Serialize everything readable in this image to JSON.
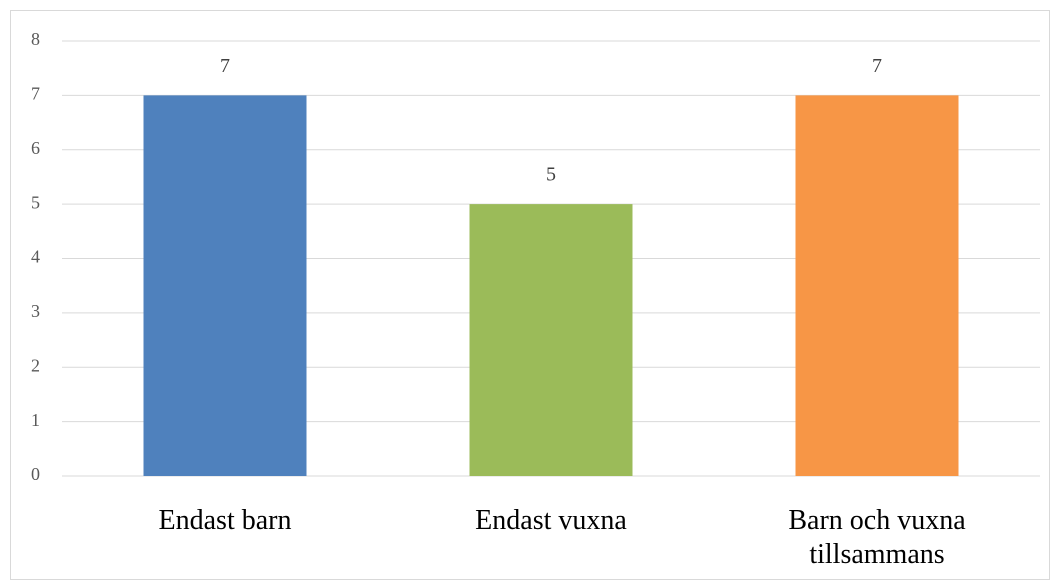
{
  "chart_data": {
    "type": "bar",
    "categories": [
      "Endast barn",
      "Endast vuxna",
      "Barn och vuxna tillsammans"
    ],
    "values": [
      7,
      5,
      7
    ],
    "colors": [
      "#4f81bd",
      "#9bbb59",
      "#f79646"
    ],
    "ylim": [
      0,
      8
    ],
    "yticks": [
      0,
      1,
      2,
      3,
      4,
      5,
      6,
      7,
      8
    ],
    "grid": true
  }
}
